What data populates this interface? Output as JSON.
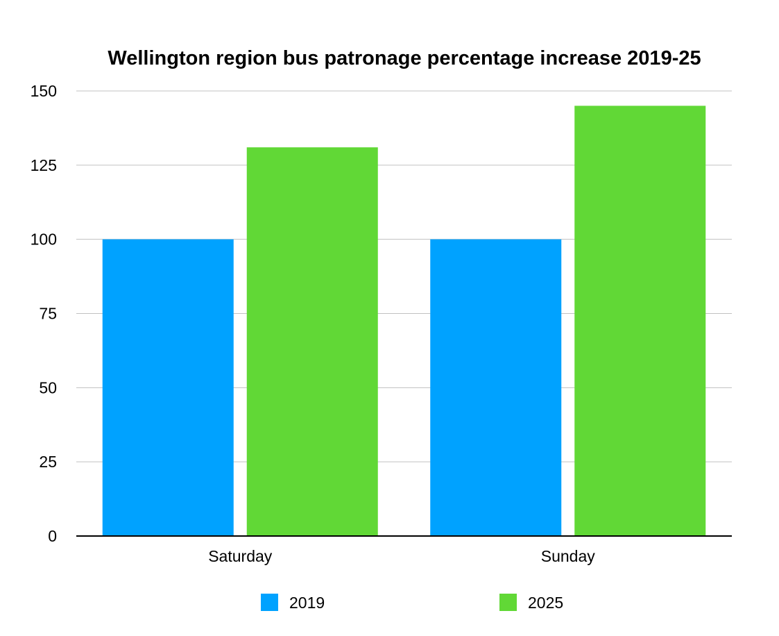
{
  "chart_data": {
    "type": "bar",
    "title": "Wellington region bus patronage percentage increase 2019-25",
    "xlabel": "",
    "ylabel": "",
    "categories": [
      "Saturday",
      "Sunday"
    ],
    "series": [
      {
        "name": "2019",
        "values": [
          100,
          100
        ],
        "color": "#00a2ff"
      },
      {
        "name": "2025",
        "values": [
          131,
          145
        ],
        "color": "#61d836"
      }
    ],
    "ylim": [
      0,
      150
    ],
    "yticks": [
      0,
      25,
      50,
      75,
      100,
      125,
      150
    ],
    "grid": true,
    "legend_position": "bottom"
  }
}
